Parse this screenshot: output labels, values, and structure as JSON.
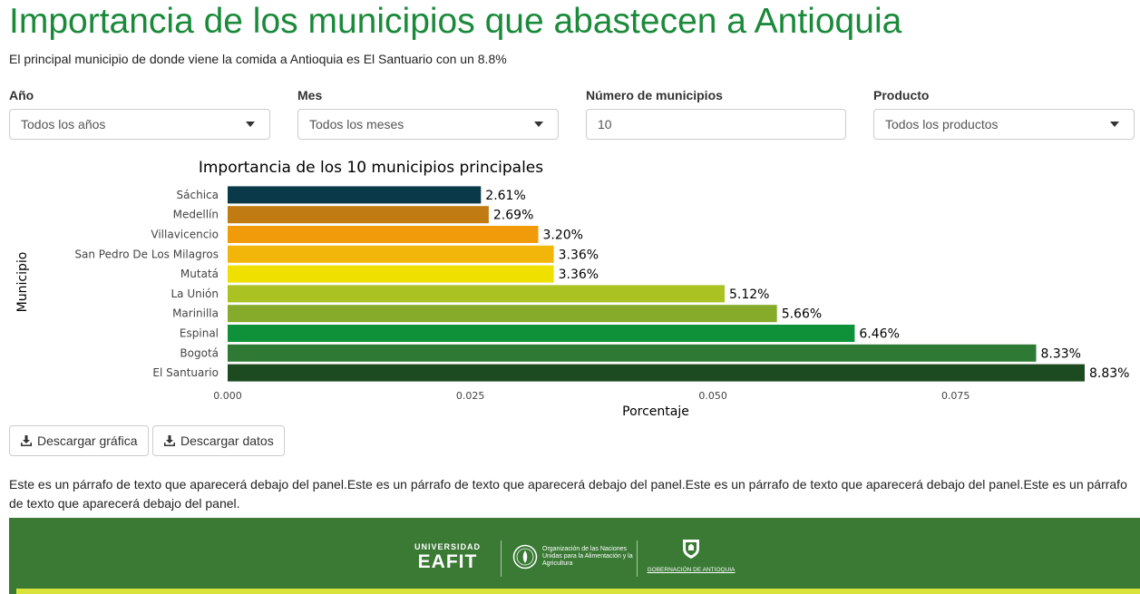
{
  "page": {
    "title": "Importancia de los municipios que abastecen a Antioquia",
    "subtitle": "El principal municipio de donde viene la comida a Antioquia es El Santuario con un 8.8%"
  },
  "filters": {
    "year": {
      "label": "Año",
      "value": "Todos los años"
    },
    "month": {
      "label": "Mes",
      "value": "Todos los meses"
    },
    "count": {
      "label": "Número de municipios",
      "value": "10"
    },
    "product": {
      "label": "Producto",
      "value": "Todos los productos"
    }
  },
  "chart_data": {
    "type": "bar",
    "orientation": "horizontal",
    "title": "Importancia de los 10 municipios principales",
    "xlabel": "Porcentaje",
    "ylabel": "Municipio",
    "xlim": [
      0,
      0.0883
    ],
    "xticks": [
      "0.000",
      "0.025",
      "0.050",
      "0.075"
    ],
    "xtick_values": [
      0,
      0.025,
      0.05,
      0.075
    ],
    "categories": [
      "Sáchica",
      "Medellín",
      "Villavicencio",
      "San Pedro De Los Milagros",
      "Mutatá",
      "La Unión",
      "Marinilla",
      "Espinal",
      "Bogotá",
      "El Santuario"
    ],
    "values": [
      0.0261,
      0.0269,
      0.032,
      0.0336,
      0.0336,
      0.0512,
      0.0566,
      0.0646,
      0.0833,
      0.0883
    ],
    "labels": [
      "2.61%",
      "2.69%",
      "3.20%",
      "3.36%",
      "3.36%",
      "5.12%",
      "5.66%",
      "6.46%",
      "8.33%",
      "8.83%"
    ],
    "colors": [
      "#0a3a4a",
      "#c07c12",
      "#f29b0a",
      "#f2b50a",
      "#f0e000",
      "#aac222",
      "#86ab2b",
      "#0f913a",
      "#2e7a34",
      "#1d4b21"
    ],
    "grid": false,
    "legend": "none"
  },
  "actions": {
    "download_chart": "Descargar gráfica",
    "download_data": "Descargar datos"
  },
  "body": {
    "paragraph": "Este es un párrafo de texto que aparecerá debajo del panel.Este es un párrafo de texto que aparecerá debajo del panel.Este es un párrafo de texto que aparecerá debajo del panel.Este es un párrafo de texto que aparecerá debajo del panel."
  },
  "footer": {
    "eafit_line1": "UNIVERSIDAD",
    "eafit_line2": "EAFIT",
    "fao_text": "Organización de las Naciones Unidas para la Alimentación y la Agricultura",
    "gob_text": "GOBERNACIÓN DE ANTIOQUIA",
    "bg_color": "#3a7a35",
    "stripe_color": "#d8e23a"
  }
}
